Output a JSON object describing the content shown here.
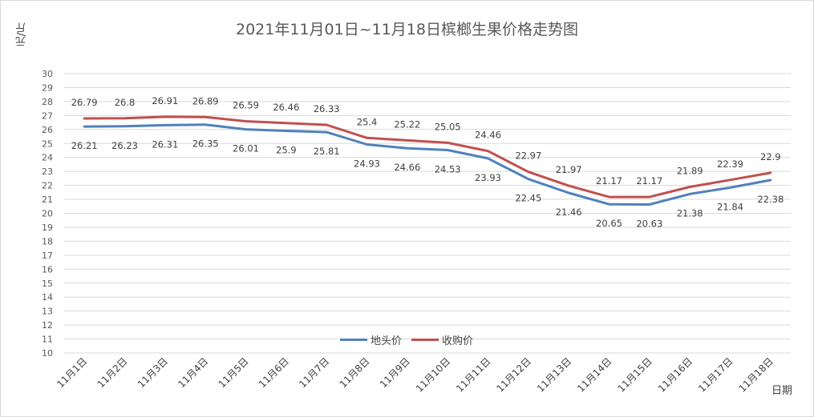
{
  "chart_data": {
    "type": "line",
    "title": "2021年11月01日~11月18日槟榔生果价格走势图",
    "ylabel": "元/斤",
    "xlabel": "日期",
    "ylim": [
      10,
      30
    ],
    "y_ticks": [
      10,
      11,
      12,
      13,
      14,
      15,
      16,
      17,
      18,
      19,
      20,
      21,
      22,
      23,
      24,
      25,
      26,
      27,
      28,
      29,
      30
    ],
    "grid": true,
    "legend_position": "bottom-center",
    "categories": [
      "11月1日",
      "11月2日",
      "11月3日",
      "11月4日",
      "11月5日",
      "11月6日",
      "11月7日",
      "11月8日",
      "11月9日",
      "11月10日",
      "11月11日",
      "11月12日",
      "11月13日",
      "11月14日",
      "11月15日",
      "11月16日",
      "11月17日",
      "11月18日"
    ],
    "series": [
      {
        "name": "地头价",
        "color": "#4f81bd",
        "values": [
          26.21,
          26.23,
          26.31,
          26.35,
          26.01,
          25.9,
          25.81,
          24.93,
          24.66,
          24.53,
          23.93,
          22.45,
          21.46,
          20.65,
          20.63,
          21.38,
          21.84,
          22.38
        ],
        "labels": [
          "26.21",
          "26.23",
          "26.31",
          "26.35",
          "26.01",
          "25.9",
          "25.81",
          "24.93",
          "24.66",
          "24.53",
          "23.93",
          "22.45",
          "21.46",
          "20.65",
          "20.63",
          "21.38",
          "21.84",
          "22.38"
        ]
      },
      {
        "name": "收购价",
        "color": "#c0504d",
        "values": [
          26.79,
          26.8,
          26.91,
          26.89,
          26.59,
          26.46,
          26.33,
          25.4,
          25.22,
          25.05,
          24.46,
          22.97,
          21.97,
          21.17,
          21.17,
          21.89,
          22.39,
          22.9
        ],
        "labels": [
          "26.79",
          "26.8",
          "26.91",
          "26.89",
          "26.59",
          "26.46",
          "26.33",
          "25.4",
          "25.22",
          "25.05",
          "24.46",
          "22.97",
          "21.97",
          "21.17",
          "21.17",
          "21.89",
          "22.39",
          "22.9"
        ]
      }
    ]
  }
}
